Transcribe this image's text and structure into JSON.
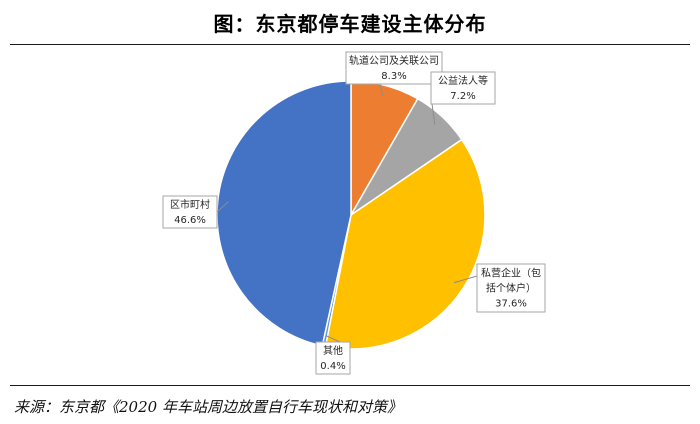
{
  "title": "图：东京都停车建设主体分布",
  "source": "来源：东京都《2020 年车站周边放置自行车现状和对策》",
  "chart_data": {
    "type": "pie",
    "title": "图：东京都停车建设主体分布",
    "start_angle_deg": 0,
    "direction": "clockwise",
    "slices": [
      {
        "name": "轨道公司及关联公司",
        "value": 8.3,
        "label": "8.3%",
        "color": "#ed7d31"
      },
      {
        "name": "公益法人等",
        "value": 7.2,
        "label": "7.2%",
        "color": "#a5a5a5"
      },
      {
        "name": "私营企业（包括个体户）",
        "name_lines": [
          "私营企业（包",
          "括个体户）"
        ],
        "value": 37.6,
        "label": "37.6%",
        "color": "#ffc000"
      },
      {
        "name": "其他",
        "value": 0.4,
        "label": "0.4%",
        "color": "#5b9bd5"
      },
      {
        "name": "区市町村",
        "value": 46.6,
        "label": "46.6%",
        "color": "#4472c4"
      }
    ]
  }
}
